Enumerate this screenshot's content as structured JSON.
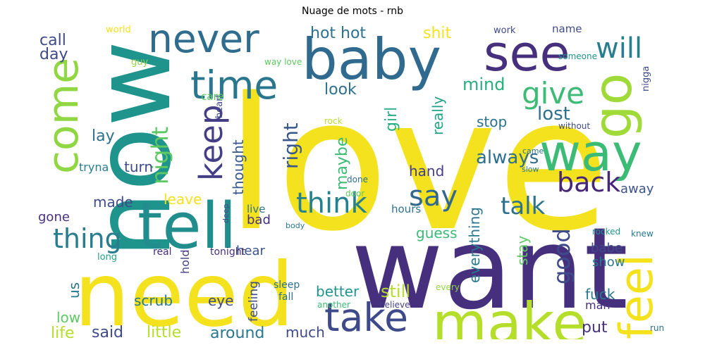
{
  "chart_data": {
    "type": "wordcloud",
    "title": "Nuage de mots - rnb",
    "palette": "viridis",
    "words": [
      {
        "text": "love",
        "color": "#f4e21e"
      },
      {
        "text": "want",
        "color": "#46307e"
      },
      {
        "text": "now",
        "color": "#1f948c"
      },
      {
        "text": "need",
        "color": "#f4e21e"
      },
      {
        "text": "baby",
        "color": "#306a8e"
      },
      {
        "text": "see",
        "color": "#46307e"
      },
      {
        "text": "never",
        "color": "#2f6c8e"
      },
      {
        "text": "make",
        "color": "#b5de2b"
      },
      {
        "text": "come",
        "color": "#90d743"
      },
      {
        "text": "go",
        "color": "#a0da39"
      },
      {
        "text": "way",
        "color": "#3bbb75"
      },
      {
        "text": "tell",
        "color": "#228d8d"
      },
      {
        "text": "feel",
        "color": "#f4e21e"
      },
      {
        "text": "time",
        "color": "#2a768e"
      },
      {
        "text": "take",
        "color": "#3e4a89"
      },
      {
        "text": "give",
        "color": "#3bbb75"
      },
      {
        "text": "will",
        "color": "#287d8e"
      },
      {
        "text": "keep",
        "color": "#433e85"
      },
      {
        "text": "say",
        "color": "#31688e"
      },
      {
        "text": "think",
        "color": "#26818e"
      },
      {
        "text": "back",
        "color": "#482677"
      },
      {
        "text": "thing",
        "color": "#287d8e"
      },
      {
        "text": "night",
        "color": "#5ec962"
      },
      {
        "text": "talk",
        "color": "#2c728e"
      },
      {
        "text": "good",
        "color": "#3e4a89"
      },
      {
        "text": "right",
        "color": "#38588c"
      },
      {
        "text": "always",
        "color": "#2d708e"
      },
      {
        "text": "lost",
        "color": "#2d708e"
      },
      {
        "text": "mind",
        "color": "#29af7f"
      },
      {
        "text": "hot hot",
        "color": "#2c728e"
      },
      {
        "text": "shit",
        "color": "#f4e21e"
      },
      {
        "text": "look",
        "color": "#2d708e"
      },
      {
        "text": "call",
        "color": "#3e4a89"
      },
      {
        "text": "day",
        "color": "#3e4a89"
      },
      {
        "text": "lay",
        "color": "#2d708e"
      },
      {
        "text": "girl",
        "color": "#29af7f"
      },
      {
        "text": "maybe",
        "color": "#3bbb75"
      },
      {
        "text": "thought",
        "color": "#38588c"
      },
      {
        "text": "really",
        "color": "#20a386"
      },
      {
        "text": "stop",
        "color": "#2c728e"
      },
      {
        "text": "turn",
        "color": "#3e4a89"
      },
      {
        "text": "tryna",
        "color": "#287d8e"
      },
      {
        "text": "hand",
        "color": "#433e85"
      },
      {
        "text": "made",
        "color": "#3e4a89"
      },
      {
        "text": "leave",
        "color": "#f4e21e"
      },
      {
        "text": "everything",
        "color": "#2a788e"
      },
      {
        "text": "away",
        "color": "#3b528b"
      },
      {
        "text": "hours",
        "color": "#2c728e"
      },
      {
        "text": "bad",
        "color": "#46307e"
      },
      {
        "text": "live",
        "color": "#2c728e"
      },
      {
        "text": "gone",
        "color": "#46307e"
      },
      {
        "text": "guess",
        "color": "#3bbb75"
      },
      {
        "text": "stay",
        "color": "#5ec962"
      },
      {
        "text": "babe",
        "color": "#3e4a89"
      },
      {
        "text": "show",
        "color": "#2a788e"
      },
      {
        "text": "hear",
        "color": "#3b528b"
      },
      {
        "text": "hold",
        "color": "#433e85"
      },
      {
        "text": "tonight",
        "color": "#46307e"
      },
      {
        "text": "real",
        "color": "#46307e"
      },
      {
        "text": "long",
        "color": "#20a386"
      },
      {
        "text": "heart",
        "color": "#3e4a89"
      },
      {
        "text": "care",
        "color": "#5ec962"
      },
      {
        "text": "better",
        "color": "#1f948c"
      },
      {
        "text": "still",
        "color": "#b5de2b"
      },
      {
        "text": "fuck",
        "color": "#2a788e"
      },
      {
        "text": "eye",
        "color": "#3e4a89"
      },
      {
        "text": "scrub",
        "color": "#2a788e"
      },
      {
        "text": "us",
        "color": "#2a788e"
      },
      {
        "text": "low",
        "color": "#5ec962"
      },
      {
        "text": "life",
        "color": "#b5de2b"
      },
      {
        "text": "said",
        "color": "#3e4a89"
      },
      {
        "text": "little",
        "color": "#b5de2b"
      },
      {
        "text": "around",
        "color": "#2a788e"
      },
      {
        "text": "much",
        "color": "#3e4a89"
      },
      {
        "text": "put",
        "color": "#46307e"
      },
      {
        "text": "man",
        "color": "#46307e"
      },
      {
        "text": "feeling",
        "color": "#3e4a89"
      },
      {
        "text": "sleep",
        "color": "#2c728e"
      },
      {
        "text": "fall",
        "color": "#2c728e"
      },
      {
        "text": "another",
        "color": "#3bbb75"
      },
      {
        "text": "believe",
        "color": "#433e85"
      },
      {
        "text": "every",
        "color": "#90d743"
      },
      {
        "text": "run",
        "color": "#2c728e"
      },
      {
        "text": "knew",
        "color": "#2a788e"
      },
      {
        "text": "rocked",
        "color": "#1f948c"
      },
      {
        "text": "done",
        "color": "#2c728e"
      },
      {
        "text": "door",
        "color": "#5ec962"
      },
      {
        "text": "came",
        "color": "#2c728e"
      },
      {
        "text": "slow",
        "color": "#2a788e"
      },
      {
        "text": "without",
        "color": "#3e4a89"
      },
      {
        "text": "rock",
        "color": "#b5de2b"
      },
      {
        "text": "nigga",
        "color": "#3e4a89"
      },
      {
        "text": "someone",
        "color": "#1f948c"
      },
      {
        "text": "name",
        "color": "#3e4a89"
      },
      {
        "text": "work",
        "color": "#3e4a89"
      },
      {
        "text": "world",
        "color": "#f4e21e"
      },
      {
        "text": "guy",
        "color": "#90d743"
      },
      {
        "text": "way love",
        "color": "#5ec962"
      },
      {
        "text": "deep",
        "color": "#3e4a89"
      },
      {
        "text": "body",
        "color": "#2a788e"
      }
    ]
  }
}
